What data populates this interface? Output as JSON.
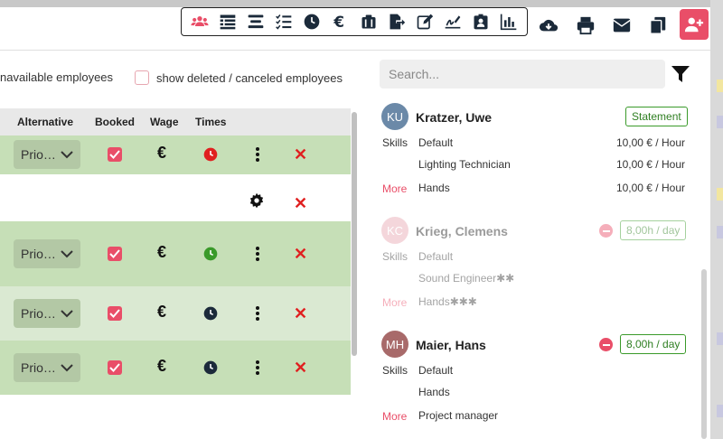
{
  "colors": {
    "accent": "#e94e68",
    "row_green": "#c6dfb7",
    "row_light": "#dae9d2",
    "ok_green": "#2f7f22"
  },
  "toolbar": {
    "icons": [
      "users-icon",
      "list-rows-icon",
      "align-icon",
      "checklist-icon",
      "clock-icon",
      "euro-icon",
      "clipboard-icon",
      "export-icon",
      "edit-icon",
      "signature-icon",
      "id-badge-icon",
      "chart-icon"
    ],
    "extra": [
      "cloud-download-icon",
      "print-icon",
      "mail-icon",
      "copy-icon"
    ],
    "add_button": "add-user-icon"
  },
  "filters": {
    "unavailable": "navailable employees",
    "deleted": "show deleted / canceled employees"
  },
  "search": {
    "placeholder": "Search..."
  },
  "table": {
    "headers": {
      "alternative": "Alternative",
      "booked": "Booked",
      "wage": "Wage",
      "times": "Times"
    },
    "rows": [
      {
        "prio": "Prio…",
        "booked": true,
        "wage": "€",
        "time_status": "red"
      },
      {
        "prio": "",
        "booked": false,
        "wage": "",
        "time_status": "settings"
      },
      {
        "prio": "Prio…",
        "booked": true,
        "wage": "€",
        "time_status": "green"
      },
      {
        "prio": "Prio…",
        "booked": true,
        "wage": "€",
        "time_status": "dark"
      },
      {
        "prio": "Prio…",
        "booked": true,
        "wage": "€",
        "time_status": "dark"
      }
    ]
  },
  "employees": [
    {
      "initials": "KU",
      "name": "Kratzer, Uwe",
      "badge": "Statement",
      "skills_label": "Skills",
      "more_label": "More",
      "skills": [
        {
          "name": "Default",
          "rate": "10,00 € / Hour"
        },
        {
          "name": "Lighting Technician",
          "rate": "10,00 € / Hour"
        },
        {
          "name": "Hands",
          "rate": "10,00 € / Hour"
        }
      ]
    },
    {
      "initials": "KC",
      "name": "Krieg, Clemens",
      "badge": "8,00h / day",
      "skills_label": "Skills",
      "more_label": "More",
      "skills": [
        {
          "name": "Default",
          "rate": ""
        },
        {
          "name": "Sound Engineer✱✱",
          "rate": ""
        },
        {
          "name": "Hands✱✱✱",
          "rate": ""
        }
      ]
    },
    {
      "initials": "MH",
      "name": "Maier, Hans",
      "badge": "8,00h / day",
      "skills_label": "Skills",
      "more_label": "More",
      "skills": [
        {
          "name": "Default",
          "rate": ""
        },
        {
          "name": "Hands",
          "rate": ""
        },
        {
          "name": "Project manager",
          "rate": ""
        }
      ]
    }
  ]
}
